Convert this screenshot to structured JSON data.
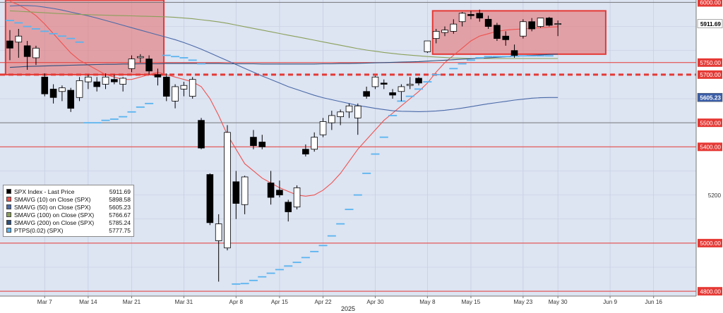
{
  "chart_data": {
    "type": "candlestick",
    "title": "",
    "ylim": [
      4780,
      6010
    ],
    "year_label": "2025",
    "x_tick_labels": [
      {
        "label": "Mar 7",
        "index": 4
      },
      {
        "label": "Mar 14",
        "index": 9
      },
      {
        "label": "Mar 21",
        "index": 14
      },
      {
        "label": "Mar 31",
        "index": 20
      },
      {
        "label": "Apr 8",
        "index": 26
      },
      {
        "label": "Apr 15",
        "index": 31
      },
      {
        "label": "Apr 22",
        "index": 36
      },
      {
        "label": "Apr 30",
        "index": 42
      },
      {
        "label": "May 8",
        "index": 48
      },
      {
        "label": "May 15",
        "index": 53
      },
      {
        "label": "May 23",
        "index": 59
      },
      {
        "label": "May 30",
        "index": 63
      },
      {
        "label": "Jun 9",
        "index": 69
      },
      {
        "label": "Jun 16",
        "index": 74
      }
    ],
    "y_tick_labels": [
      {
        "label": "6000.00",
        "value": 6000,
        "boxed": true
      },
      {
        "label": "5750.00",
        "value": 5750,
        "boxed": true
      },
      {
        "label": "5700.00",
        "value": 5700,
        "boxed": true
      },
      {
        "label": "5500.00",
        "value": 5500,
        "boxed": true
      },
      {
        "label": "5400.00",
        "value": 5400,
        "boxed": true
      },
      {
        "label": "5200",
        "value": 5200,
        "boxed": false
      },
      {
        "label": "5000.00",
        "value": 5000,
        "boxed": true
      },
      {
        "label": "4800.00",
        "value": 4800,
        "boxed": true
      }
    ],
    "price_markers": [
      {
        "label": "5911.69",
        "value": 5911.69,
        "bg": "#ffffff",
        "fg": "#000000"
      },
      {
        "label": "5605.23",
        "value": 5605.23,
        "bg": "#3b5ea8",
        "fg": "#ffffff"
      }
    ],
    "horizontal_levels": [
      {
        "value": 6000,
        "color": "#777777",
        "style": "solid"
      },
      {
        "value": 5750,
        "color": "#e53935",
        "style": "solid"
      },
      {
        "value": 5700,
        "color": "#e53935",
        "style": "dashed"
      },
      {
        "value": 5500,
        "color": "#777777",
        "style": "solid"
      },
      {
        "value": 5400,
        "color": "#e53935",
        "style": "solid"
      },
      {
        "value": 5000,
        "color": "#e53935",
        "style": "solid"
      },
      {
        "value": 4800,
        "color": "#e53935",
        "style": "solid"
      }
    ],
    "zones": [
      {
        "x_from": -0.5,
        "x_to": 17.7,
        "y_from": 5700,
        "y_to": 6010,
        "fill": "#e57373",
        "stroke": "#e53935"
      },
      {
        "x_from": 48.6,
        "x_to": 68.5,
        "y_from": 5785,
        "y_to": 5965,
        "fill": "#e57373",
        "stroke": "#e53935"
      }
    ],
    "candles": [
      {
        "o": 5840,
        "h": 5885,
        "l": 5760,
        "c": 5810
      },
      {
        "o": 5835,
        "h": 5890,
        "l": 5770,
        "c": 5860
      },
      {
        "o": 5820,
        "h": 5840,
        "l": 5720,
        "c": 5775
      },
      {
        "o": 5770,
        "h": 5820,
        "l": 5740,
        "c": 5810
      },
      {
        "o": 5690,
        "h": 5705,
        "l": 5610,
        "c": 5620
      },
      {
        "o": 5640,
        "h": 5660,
        "l": 5580,
        "c": 5605
      },
      {
        "o": 5630,
        "h": 5655,
        "l": 5590,
        "c": 5645
      },
      {
        "o": 5635,
        "h": 5645,
        "l": 5545,
        "c": 5560
      },
      {
        "o": 5605,
        "h": 5690,
        "l": 5590,
        "c": 5675
      },
      {
        "o": 5670,
        "h": 5700,
        "l": 5640,
        "c": 5690
      },
      {
        "o": 5670,
        "h": 5690,
        "l": 5630,
        "c": 5650
      },
      {
        "o": 5660,
        "h": 5705,
        "l": 5640,
        "c": 5690
      },
      {
        "o": 5680,
        "h": 5700,
        "l": 5660,
        "c": 5670
      },
      {
        "o": 5660,
        "h": 5690,
        "l": 5630,
        "c": 5685
      },
      {
        "o": 5725,
        "h": 5780,
        "l": 5710,
        "c": 5765
      },
      {
        "o": 5770,
        "h": 5785,
        "l": 5750,
        "c": 5775
      },
      {
        "o": 5765,
        "h": 5780,
        "l": 5700,
        "c": 5715
      },
      {
        "o": 5700,
        "h": 5725,
        "l": 5655,
        "c": 5690
      },
      {
        "o": 5690,
        "h": 5705,
        "l": 5590,
        "c": 5610
      },
      {
        "o": 5590,
        "h": 5660,
        "l": 5560,
        "c": 5650
      },
      {
        "o": 5640,
        "h": 5670,
        "l": 5610,
        "c": 5655
      },
      {
        "o": 5610,
        "h": 5690,
        "l": 5600,
        "c": 5680
      },
      {
        "o": 5510,
        "h": 5520,
        "l": 5390,
        "c": 5395
      },
      {
        "o": 5285,
        "h": 5290,
        "l": 5075,
        "c": 5085
      },
      {
        "o": 5010,
        "h": 5120,
        "l": 4840,
        "c": 5080
      },
      {
        "o": 4980,
        "h": 5490,
        "l": 4970,
        "c": 5460
      },
      {
        "o": 5255,
        "h": 5300,
        "l": 5100,
        "c": 5165
      },
      {
        "o": 5160,
        "h": 5280,
        "l": 5120,
        "c": 5275
      },
      {
        "o": 5440,
        "h": 5470,
        "l": 5390,
        "c": 5405
      },
      {
        "o": 5420,
        "h": 5450,
        "l": 5390,
        "c": 5400
      },
      {
        "o": 5250,
        "h": 5300,
        "l": 5160,
        "c": 5190
      },
      {
        "o": 5220,
        "h": 5260,
        "l": 5190,
        "c": 5200
      },
      {
        "o": 5170,
        "h": 5180,
        "l": 5090,
        "c": 5130
      },
      {
        "o": 5150,
        "h": 5240,
        "l": 5140,
        "c": 5230
      },
      {
        "o": 5390,
        "h": 5410,
        "l": 5360,
        "c": 5370
      },
      {
        "o": 5390,
        "h": 5460,
        "l": 5380,
        "c": 5440
      },
      {
        "o": 5450,
        "h": 5520,
        "l": 5440,
        "c": 5505
      },
      {
        "o": 5500,
        "h": 5550,
        "l": 5470,
        "c": 5530
      },
      {
        "o": 5525,
        "h": 5555,
        "l": 5490,
        "c": 5545
      },
      {
        "o": 5545,
        "h": 5580,
        "l": 5520,
        "c": 5570
      },
      {
        "o": 5520,
        "h": 5580,
        "l": 5450,
        "c": 5570
      },
      {
        "o": 5630,
        "h": 5650,
        "l": 5600,
        "c": 5610
      },
      {
        "o": 5650,
        "h": 5695,
        "l": 5640,
        "c": 5690
      },
      {
        "o": 5665,
        "h": 5680,
        "l": 5640,
        "c": 5660
      },
      {
        "o": 5625,
        "h": 5640,
        "l": 5600,
        "c": 5615
      },
      {
        "o": 5630,
        "h": 5660,
        "l": 5590,
        "c": 5650
      },
      {
        "o": 5655,
        "h": 5690,
        "l": 5640,
        "c": 5660
      },
      {
        "o": 5685,
        "h": 5690,
        "l": 5655,
        "c": 5665
      },
      {
        "o": 5795,
        "h": 5830,
        "l": 5790,
        "c": 5840
      },
      {
        "o": 5850,
        "h": 5890,
        "l": 5830,
        "c": 5880
      },
      {
        "o": 5875,
        "h": 5900,
        "l": 5860,
        "c": 5885
      },
      {
        "o": 5880,
        "h": 5930,
        "l": 5870,
        "c": 5910
      },
      {
        "o": 5920,
        "h": 5960,
        "l": 5900,
        "c": 5955
      },
      {
        "o": 5950,
        "h": 5965,
        "l": 5930,
        "c": 5945
      },
      {
        "o": 5955,
        "h": 5970,
        "l": 5920,
        "c": 5935
      },
      {
        "o": 5930,
        "h": 5945,
        "l": 5890,
        "c": 5900
      },
      {
        "o": 5905,
        "h": 5915,
        "l": 5840,
        "c": 5850
      },
      {
        "o": 5860,
        "h": 5880,
        "l": 5820,
        "c": 5845
      },
      {
        "o": 5800,
        "h": 5825,
        "l": 5770,
        "c": 5780
      },
      {
        "o": 5860,
        "h": 5930,
        "l": 5850,
        "c": 5920
      },
      {
        "o": 5920,
        "h": 5935,
        "l": 5880,
        "c": 5890
      },
      {
        "o": 5900,
        "h": 5935,
        "l": 5895,
        "c": 5935
      },
      {
        "o": 5935,
        "h": 5940,
        "l": 5900,
        "c": 5905
      },
      {
        "o": 5910,
        "h": 5925,
        "l": 5860,
        "c": 5912
      }
    ],
    "series": [
      {
        "name": "SMAVG (10)  on Close (SPX)",
        "color": "#ef5350",
        "width": 1.1,
        "start": 0,
        "values": [
          6005,
          5990,
          5970,
          5945,
          5910,
          5870,
          5830,
          5790,
          5760,
          5740,
          5720,
          5700,
          5690,
          5680,
          5680,
          5690,
          5700,
          5710,
          5700,
          5690,
          5680,
          5670,
          5650,
          5600,
          5530,
          5450,
          5390,
          5330,
          5300,
          5270,
          5250,
          5230,
          5215,
          5200,
          5195,
          5200,
          5220,
          5250,
          5290,
          5340,
          5390,
          5430,
          5470,
          5510,
          5540,
          5570,
          5600,
          5630,
          5665,
          5710,
          5750,
          5780,
          5810,
          5840,
          5860,
          5870,
          5880,
          5885,
          5888,
          5890,
          5893,
          5895,
          5897,
          5899
        ]
      },
      {
        "name": "SMAVG (50)  on Close (SPX)",
        "color": "#4a6aa8",
        "width": 1.1,
        "start": 0,
        "values": [
          5985,
          5987,
          5987,
          5985,
          5980,
          5975,
          5968,
          5960,
          5952,
          5944,
          5935,
          5925,
          5915,
          5905,
          5895,
          5885,
          5875,
          5865,
          5855,
          5845,
          5833,
          5820,
          5806,
          5790,
          5774,
          5758,
          5742,
          5726,
          5710,
          5694,
          5680,
          5665,
          5650,
          5638,
          5626,
          5614,
          5604,
          5596,
          5588,
          5580,
          5572,
          5566,
          5560,
          5555,
          5550,
          5548,
          5547,
          5546,
          5547,
          5549,
          5552,
          5556,
          5561,
          5567,
          5573,
          5579,
          5584,
          5589,
          5594,
          5598,
          5602,
          5604,
          5605,
          5605
        ]
      },
      {
        "name": "SMAVG (100)  on Close (SPX)",
        "color": "#8aa05a",
        "width": 1.1,
        "start": 0,
        "values": [
          5965,
          5963,
          5961,
          5959,
          5957,
          5955,
          5953,
          5951,
          5950,
          5949,
          5948,
          5947,
          5946,
          5945,
          5944,
          5943,
          5942,
          5941,
          5940,
          5938,
          5935,
          5932,
          5928,
          5924,
          5919,
          5913,
          5906,
          5899,
          5892,
          5885,
          5878,
          5871,
          5864,
          5857,
          5850,
          5843,
          5836,
          5829,
          5822,
          5815,
          5808,
          5802,
          5797,
          5792,
          5788,
          5784,
          5781,
          5778,
          5775,
          5773,
          5771,
          5769,
          5768,
          5767,
          5767,
          5767,
          5767,
          5767,
          5767,
          5767,
          5767,
          5767,
          5767,
          5767
        ]
      },
      {
        "name": "SMAVG (200)  on Close (SPX)",
        "color": "#2d4f7c",
        "width": 1.1,
        "start": 0,
        "values": [
          5730,
          5732,
          5734,
          5735,
          5736,
          5737,
          5738,
          5739,
          5740,
          5741,
          5742,
          5743,
          5743,
          5744,
          5744,
          5745,
          5745,
          5745,
          5746,
          5746,
          5746,
          5746,
          5746,
          5746,
          5746,
          5745,
          5745,
          5745,
          5745,
          5744,
          5744,
          5744,
          5744,
          5744,
          5744,
          5744,
          5745,
          5745,
          5746,
          5746,
          5747,
          5748,
          5749,
          5750,
          5751,
          5752,
          5753,
          5754,
          5756,
          5758,
          5760,
          5762,
          5764,
          5766,
          5768,
          5770,
          5772,
          5774,
          5776,
          5778,
          5780,
          5782,
          5784,
          5785
        ]
      },
      {
        "name": "PTPS(0.02)  (SPX)",
        "color": "#5ab4f0",
        "type": "dots",
        "points": [
          [
            0,
            5925
          ],
          [
            1,
            5915
          ],
          [
            2,
            5900
          ],
          [
            3,
            5890
          ],
          [
            4,
            5880
          ],
          [
            5,
            5870
          ],
          [
            6,
            5860
          ],
          [
            7,
            5850
          ],
          [
            8,
            5835
          ],
          [
            9,
            5500
          ],
          [
            10,
            5500
          ],
          [
            11,
            5510
          ],
          [
            12,
            5515
          ],
          [
            13,
            5525
          ],
          [
            14,
            5545
          ],
          [
            15,
            5565
          ],
          [
            16,
            5580
          ],
          [
            18,
            5780
          ],
          [
            19,
            5775
          ],
          [
            20,
            5770
          ],
          [
            21,
            5760
          ],
          [
            22,
            5745
          ],
          [
            26,
            4830
          ],
          [
            27,
            4832
          ],
          [
            28,
            4845
          ],
          [
            29,
            4860
          ],
          [
            30,
            4875
          ],
          [
            31,
            4890
          ],
          [
            32,
            4905
          ],
          [
            33,
            4920
          ],
          [
            34,
            4940
          ],
          [
            35,
            4965
          ],
          [
            36,
            4990
          ],
          [
            37,
            5030
          ],
          [
            38,
            5080
          ],
          [
            39,
            5140
          ],
          [
            40,
            5200
          ],
          [
            41,
            5290
          ],
          [
            42,
            5370
          ],
          [
            43,
            5440
          ],
          [
            44,
            5530
          ],
          [
            45,
            5590
          ],
          [
            46,
            5610
          ],
          [
            47,
            5640
          ],
          [
            48,
            5670
          ],
          [
            49,
            5700
          ],
          [
            51,
            5725
          ],
          [
            52,
            5745
          ],
          [
            53,
            5760
          ],
          [
            54,
            5770
          ],
          [
            55,
            5775
          ],
          [
            56,
            5775
          ],
          [
            57,
            5775
          ],
          [
            58,
            5777
          ],
          [
            59,
            5778
          ],
          [
            60,
            5778
          ],
          [
            61,
            5778
          ],
          [
            62,
            5778
          ]
        ]
      }
    ],
    "legend": {
      "placement": "bottom-left",
      "entries": [
        {
          "label": "SPX Index - Last Price",
          "value": "5911.69",
          "color": "#000000"
        },
        {
          "label": "SMAVG (10)  on Close (SPX)",
          "value": "5898.58",
          "color": "#ef5350"
        },
        {
          "label": "SMAVG (50)  on Close (SPX)",
          "value": "5605.23",
          "color": "#4a6aa8"
        },
        {
          "label": "SMAVG (100)  on Close (SPX)",
          "value": "5766.67",
          "color": "#8aa05a"
        },
        {
          "label": "SMAVG (200)  on Close (SPX)",
          "value": "5785.24",
          "color": "#2d4f7c"
        },
        {
          "label": "PTPS(0.02)  (SPX)",
          "value": "5777.75",
          "color": "#5ab4f0"
        }
      ]
    },
    "colors": {
      "plot_background": "#dde4f2",
      "grid": "#c3cde0",
      "up_candle": "#ffffff",
      "down_candle": "#000000"
    }
  }
}
